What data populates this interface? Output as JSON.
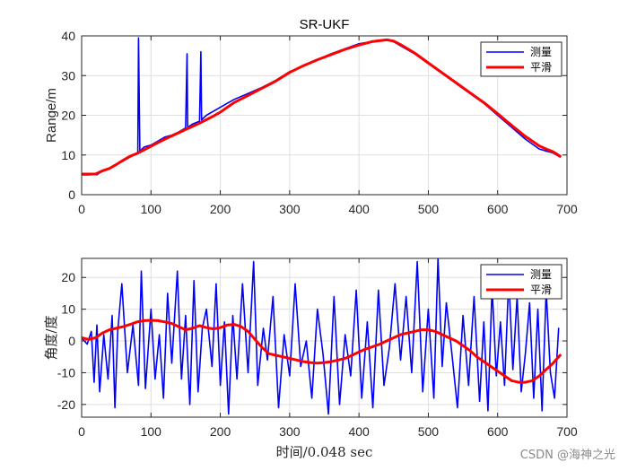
{
  "watermark": "CSDN @海神之光",
  "chart_data": [
    {
      "type": "line",
      "title": "SR-UKF",
      "xlabel": "",
      "ylabel": "Range/m",
      "xlim": [
        0,
        700
      ],
      "ylim": [
        0,
        40
      ],
      "xticks": [
        0,
        100,
        200,
        300,
        400,
        500,
        600,
        700
      ],
      "yticks": [
        0,
        10,
        20,
        30,
        40
      ],
      "grid": true,
      "legend_position": "top-right",
      "series": [
        {
          "name": "测量",
          "color": "#0000ff",
          "x": [
            0,
            10,
            20,
            22,
            30,
            40,
            50,
            60,
            70,
            78,
            81,
            82,
            84,
            90,
            100,
            110,
            120,
            130,
            140,
            150,
            152,
            153,
            155,
            160,
            170,
            172,
            173,
            175,
            180,
            200,
            220,
            240,
            260,
            280,
            300,
            320,
            340,
            360,
            380,
            400,
            420,
            440,
            450,
            460,
            480,
            500,
            520,
            540,
            560,
            580,
            600,
            620,
            640,
            660,
            670,
            680,
            690
          ],
          "y": [
            5,
            5,
            5.1,
            5,
            6,
            6.5,
            7.5,
            8.5,
            9.5,
            10.2,
            10.5,
            39.5,
            11,
            12,
            12.5,
            13.5,
            14.5,
            15,
            15.8,
            16.8,
            35.5,
            17,
            17.2,
            17.8,
            18.5,
            36,
            18.8,
            19.2,
            20,
            22,
            24,
            25.5,
            27,
            28.8,
            31,
            32.5,
            34,
            35.5,
            36.8,
            38,
            38.6,
            39,
            38.5,
            37.5,
            35.5,
            33,
            30.5,
            28,
            25.5,
            23,
            20,
            17,
            14,
            11.5,
            11,
            10.5,
            9.5
          ]
        },
        {
          "name": "平滑",
          "color": "#ff0000",
          "x": [
            0,
            20,
            30,
            40,
            50,
            60,
            70,
            80,
            90,
            100,
            110,
            120,
            130,
            140,
            150,
            160,
            170,
            180,
            190,
            200,
            220,
            240,
            260,
            280,
            300,
            320,
            340,
            360,
            380,
            400,
            420,
            440,
            450,
            460,
            480,
            500,
            520,
            540,
            560,
            580,
            600,
            620,
            640,
            660,
            670,
            680,
            690
          ],
          "y": [
            5.2,
            5.2,
            6,
            6.6,
            7.6,
            8.7,
            9.7,
            10.4,
            11.3,
            12.2,
            13.1,
            14,
            14.8,
            15.6,
            16.4,
            17.2,
            18,
            18.9,
            19.8,
            20.8,
            23.2,
            25,
            26.8,
            28.6,
            30.8,
            32.5,
            34,
            35.3,
            36.6,
            37.7,
            38.6,
            39,
            38.7,
            37.8,
            35.7,
            33.2,
            30.7,
            28.2,
            25.7,
            23.2,
            20.4,
            17.5,
            14.7,
            12.3,
            11.5,
            10.8,
            9.7
          ]
        }
      ]
    },
    {
      "type": "line",
      "title": "",
      "xlabel": "时间/0.048 sec",
      "ylabel": "角度/度",
      "xlim": [
        0,
        700
      ],
      "ylim": [
        -24,
        26
      ],
      "xticks": [
        0,
        100,
        200,
        300,
        400,
        500,
        600,
        700
      ],
      "yticks": [
        -20,
        -10,
        0,
        10,
        20
      ],
      "grid": true,
      "legend_position": "top-right",
      "series": [
        {
          "name": "测量",
          "color": "#0000ff",
          "x": [
            0,
            8,
            14,
            18,
            22,
            26,
            32,
            38,
            44,
            48,
            52,
            58,
            66,
            74,
            82,
            86,
            92,
            100,
            106,
            112,
            118,
            124,
            130,
            138,
            144,
            150,
            156,
            162,
            168,
            174,
            180,
            188,
            194,
            200,
            206,
            212,
            218,
            224,
            232,
            240,
            248,
            254,
            262,
            268,
            276,
            284,
            292,
            300,
            308,
            316,
            324,
            332,
            340,
            348,
            356,
            364,
            372,
            380,
            388,
            396,
            404,
            412,
            420,
            428,
            436,
            444,
            452,
            460,
            468,
            476,
            484,
            492,
            500,
            508,
            514,
            520,
            526,
            534,
            542,
            550,
            558,
            566,
            574,
            580,
            586,
            592,
            598,
            604,
            610,
            616,
            622,
            628,
            634,
            640,
            646,
            652,
            658,
            664,
            670,
            676,
            682,
            688
          ],
          "y": [
            1,
            -1,
            3,
            -13,
            5,
            -16,
            2,
            -12,
            8,
            -21,
            3,
            18,
            -10,
            5,
            -14,
            22,
            -15,
            10,
            -12,
            2,
            -18,
            15,
            -7,
            22,
            -12,
            8,
            -20,
            19,
            -16,
            4,
            10,
            -8,
            18,
            -14,
            6,
            -23,
            8,
            -12,
            18,
            -10,
            25,
            -14,
            4,
            -6,
            14,
            -21,
            2,
            -11,
            18,
            -8,
            0,
            -18,
            10,
            -4,
            -23,
            14,
            -20,
            2,
            -11,
            16,
            -18,
            6,
            -21,
            16,
            -14,
            -2,
            18,
            -6,
            14,
            -10,
            25,
            -16,
            10,
            -18,
            26,
            -8,
            12,
            -4,
            -21,
            8,
            -14,
            14,
            -19,
            6,
            -22,
            17,
            -11,
            6,
            -14,
            20,
            -9,
            14,
            -16,
            -4,
            12,
            -18,
            10,
            -22,
            16,
            -10,
            -18,
            4
          ]
        },
        {
          "name": "平滑",
          "color": "#ff0000",
          "x": [
            0,
            10,
            20,
            30,
            40,
            50,
            60,
            70,
            80,
            90,
            100,
            110,
            120,
            130,
            140,
            150,
            160,
            170,
            180,
            190,
            200,
            210,
            220,
            230,
            240,
            250,
            260,
            270,
            280,
            290,
            300,
            310,
            320,
            330,
            340,
            350,
            360,
            370,
            380,
            390,
            400,
            410,
            420,
            430,
            440,
            450,
            460,
            470,
            480,
            490,
            500,
            510,
            520,
            530,
            540,
            550,
            560,
            570,
            580,
            590,
            600,
            610,
            620,
            630,
            640,
            650,
            660,
            670,
            680,
            690
          ],
          "y": [
            1,
            0.5,
            1,
            2.5,
            3.5,
            4,
            4.5,
            5.2,
            6,
            6.4,
            6.5,
            6.4,
            6,
            5.5,
            4.5,
            3.5,
            4,
            4.8,
            4.2,
            3.8,
            4.2,
            5,
            5.2,
            4.5,
            3,
            0.5,
            -2,
            -4,
            -4.5,
            -5,
            -5.5,
            -6,
            -6.5,
            -6.8,
            -7,
            -6.8,
            -6.5,
            -6,
            -5.5,
            -4.5,
            -3.5,
            -2.5,
            -1.8,
            -1,
            0,
            1,
            2,
            2.5,
            3,
            3.5,
            3.5,
            3,
            2,
            1,
            0,
            -1.5,
            -3,
            -5,
            -6.5,
            -8,
            -9.5,
            -11,
            -12.5,
            -13,
            -13,
            -12.5,
            -11,
            -9,
            -7,
            -4.5
          ]
        }
      ]
    }
  ]
}
